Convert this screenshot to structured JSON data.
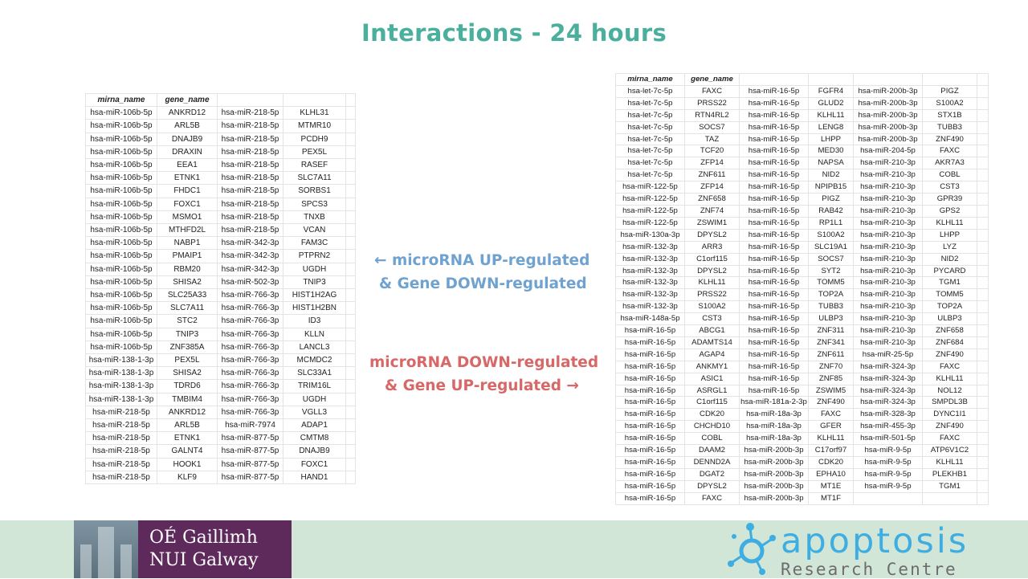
{
  "slide": {
    "title": "Interactions - 24 hours",
    "annotation_up": {
      "line1": "← microRNA UP-regulated",
      "line2": "& Gene DOWN-regulated"
    },
    "annotation_down": {
      "line1": "microRNA DOWN-regulated",
      "line2": "& Gene UP-regulated →"
    }
  },
  "colors": {
    "title": "#4aaf9c",
    "up_text": "#6fa2cf",
    "down_text": "#d86767",
    "footer_band": "#d2e6d8",
    "nui_purple": "#5d2a5b",
    "apoptosis_blue": "#3eaee2"
  },
  "table_up": {
    "headers": [
      "mirna_name",
      "gene_name",
      "",
      ""
    ],
    "rows": [
      [
        "hsa-miR-106b-5p",
        "ANKRD12",
        "hsa-miR-218-5p",
        "KLHL31"
      ],
      [
        "hsa-miR-106b-5p",
        "ARL5B",
        "hsa-miR-218-5p",
        "MTMR10"
      ],
      [
        "hsa-miR-106b-5p",
        "DNAJB9",
        "hsa-miR-218-5p",
        "PCDH9"
      ],
      [
        "hsa-miR-106b-5p",
        "DRAXIN",
        "hsa-miR-218-5p",
        "PEX5L"
      ],
      [
        "hsa-miR-106b-5p",
        "EEA1",
        "hsa-miR-218-5p",
        "RASEF"
      ],
      [
        "hsa-miR-106b-5p",
        "ETNK1",
        "hsa-miR-218-5p",
        "SLC7A11"
      ],
      [
        "hsa-miR-106b-5p",
        "FHDC1",
        "hsa-miR-218-5p",
        "SORBS1"
      ],
      [
        "hsa-miR-106b-5p",
        "FOXC1",
        "hsa-miR-218-5p",
        "SPCS3"
      ],
      [
        "hsa-miR-106b-5p",
        "MSMO1",
        "hsa-miR-218-5p",
        "TNXB"
      ],
      [
        "hsa-miR-106b-5p",
        "MTHFD2L",
        "hsa-miR-218-5p",
        "VCAN"
      ],
      [
        "hsa-miR-106b-5p",
        "NABP1",
        "hsa-miR-342-3p",
        "FAM3C"
      ],
      [
        "hsa-miR-106b-5p",
        "PMAIP1",
        "hsa-miR-342-3p",
        "PTPRN2"
      ],
      [
        "hsa-miR-106b-5p",
        "RBM20",
        "hsa-miR-342-3p",
        "UGDH"
      ],
      [
        "hsa-miR-106b-5p",
        "SHISA2",
        "hsa-miR-502-3p",
        "TNIP3"
      ],
      [
        "hsa-miR-106b-5p",
        "SLC25A33",
        "hsa-miR-766-3p",
        "HIST1H2AG"
      ],
      [
        "hsa-miR-106b-5p",
        "SLC7A11",
        "hsa-miR-766-3p",
        "HIST1H2BN"
      ],
      [
        "hsa-miR-106b-5p",
        "STC2",
        "hsa-miR-766-3p",
        "ID3"
      ],
      [
        "hsa-miR-106b-5p",
        "TNIP3",
        "hsa-miR-766-3p",
        "KLLN"
      ],
      [
        "hsa-miR-106b-5p",
        "ZNF385A",
        "hsa-miR-766-3p",
        "LANCL3"
      ],
      [
        "hsa-miR-138-1-3p",
        "PEX5L",
        "hsa-miR-766-3p",
        "MCMDC2"
      ],
      [
        "hsa-miR-138-1-3p",
        "SHISA2",
        "hsa-miR-766-3p",
        "SLC33A1"
      ],
      [
        "hsa-miR-138-1-3p",
        "TDRD6",
        "hsa-miR-766-3p",
        "TRIM16L"
      ],
      [
        "hsa-miR-138-1-3p",
        "TMBIM4",
        "hsa-miR-766-3p",
        "UGDH"
      ],
      [
        "hsa-miR-218-5p",
        "ANKRD12",
        "hsa-miR-766-3p",
        "VGLL3"
      ],
      [
        "hsa-miR-218-5p",
        "ARL5B",
        "hsa-miR-7974",
        "ADAP1"
      ],
      [
        "hsa-miR-218-5p",
        "ETNK1",
        "hsa-miR-877-5p",
        "CMTM8"
      ],
      [
        "hsa-miR-218-5p",
        "GALNT4",
        "hsa-miR-877-5p",
        "DNAJB9"
      ],
      [
        "hsa-miR-218-5p",
        "HOOK1",
        "hsa-miR-877-5p",
        "FOXC1"
      ],
      [
        "hsa-miR-218-5p",
        "KLF9",
        "hsa-miR-877-5p",
        "HAND1"
      ]
    ]
  },
  "table_down": {
    "headers": [
      "mirna_name",
      "gene_name",
      "",
      "",
      "",
      ""
    ],
    "rows": [
      [
        "hsa-let-7c-5p",
        "FAXC",
        "hsa-miR-16-5p",
        "FGFR4",
        "hsa-miR-200b-3p",
        "PIGZ"
      ],
      [
        "hsa-let-7c-5p",
        "PRSS22",
        "hsa-miR-16-5p",
        "GLUD2",
        "hsa-miR-200b-3p",
        "S100A2"
      ],
      [
        "hsa-let-7c-5p",
        "RTN4RL2",
        "hsa-miR-16-5p",
        "KLHL11",
        "hsa-miR-200b-3p",
        "STX1B"
      ],
      [
        "hsa-let-7c-5p",
        "SOCS7",
        "hsa-miR-16-5p",
        "LENG8",
        "hsa-miR-200b-3p",
        "TUBB3"
      ],
      [
        "hsa-let-7c-5p",
        "TAZ",
        "hsa-miR-16-5p",
        "LHPP",
        "hsa-miR-200b-3p",
        "ZNF490"
      ],
      [
        "hsa-let-7c-5p",
        "TCF20",
        "hsa-miR-16-5p",
        "MED30",
        "hsa-miR-204-5p",
        "FAXC"
      ],
      [
        "hsa-let-7c-5p",
        "ZFP14",
        "hsa-miR-16-5p",
        "NAPSA",
        "hsa-miR-210-3p",
        "AKR7A3"
      ],
      [
        "hsa-let-7c-5p",
        "ZNF611",
        "hsa-miR-16-5p",
        "NID2",
        "hsa-miR-210-3p",
        "COBL"
      ],
      [
        "hsa-miR-122-5p",
        "ZFP14",
        "hsa-miR-16-5p",
        "NPIPB15",
        "hsa-miR-210-3p",
        "CST3"
      ],
      [
        "hsa-miR-122-5p",
        "ZNF658",
        "hsa-miR-16-5p",
        "PIGZ",
        "hsa-miR-210-3p",
        "GPR39"
      ],
      [
        "hsa-miR-122-5p",
        "ZNF74",
        "hsa-miR-16-5p",
        "RAB42",
        "hsa-miR-210-3p",
        "GPS2"
      ],
      [
        "hsa-miR-122-5p",
        "ZSWIM1",
        "hsa-miR-16-5p",
        "RP1L1",
        "hsa-miR-210-3p",
        "KLHL11"
      ],
      [
        "hsa-miR-130a-3p",
        "DPYSL2",
        "hsa-miR-16-5p",
        "S100A2",
        "hsa-miR-210-3p",
        "LHPP"
      ],
      [
        "hsa-miR-132-3p",
        "ARR3",
        "hsa-miR-16-5p",
        "SLC19A1",
        "hsa-miR-210-3p",
        "LYZ"
      ],
      [
        "hsa-miR-132-3p",
        "C1orf115",
        "hsa-miR-16-5p",
        "SOCS7",
        "hsa-miR-210-3p",
        "NID2"
      ],
      [
        "hsa-miR-132-3p",
        "DPYSL2",
        "hsa-miR-16-5p",
        "SYT2",
        "hsa-miR-210-3p",
        "PYCARD"
      ],
      [
        "hsa-miR-132-3p",
        "KLHL11",
        "hsa-miR-16-5p",
        "TOMM5",
        "hsa-miR-210-3p",
        "TGM1"
      ],
      [
        "hsa-miR-132-3p",
        "PRSS22",
        "hsa-miR-16-5p",
        "TOP2A",
        "hsa-miR-210-3p",
        "TOMM5"
      ],
      [
        "hsa-miR-132-3p",
        "S100A2",
        "hsa-miR-16-5p",
        "TUBB3",
        "hsa-miR-210-3p",
        "TOP2A"
      ],
      [
        "hsa-miR-148a-5p",
        "CST3",
        "hsa-miR-16-5p",
        "ULBP3",
        "hsa-miR-210-3p",
        "ULBP3"
      ],
      [
        "hsa-miR-16-5p",
        "ABCG1",
        "hsa-miR-16-5p",
        "ZNF311",
        "hsa-miR-210-3p",
        "ZNF658"
      ],
      [
        "hsa-miR-16-5p",
        "ADAMTS14",
        "hsa-miR-16-5p",
        "ZNF341",
        "hsa-miR-210-3p",
        "ZNF684"
      ],
      [
        "hsa-miR-16-5p",
        "AGAP4",
        "hsa-miR-16-5p",
        "ZNF611",
        "hsa-miR-25-5p",
        "ZNF490"
      ],
      [
        "hsa-miR-16-5p",
        "ANKMY1",
        "hsa-miR-16-5p",
        "ZNF70",
        "hsa-miR-324-3p",
        "FAXC"
      ],
      [
        "hsa-miR-16-5p",
        "ASIC1",
        "hsa-miR-16-5p",
        "ZNF85",
        "hsa-miR-324-3p",
        "KLHL11"
      ],
      [
        "hsa-miR-16-5p",
        "ASRGL1",
        "hsa-miR-16-5p",
        "ZSWIM5",
        "hsa-miR-324-3p",
        "NOL12"
      ],
      [
        "hsa-miR-16-5p",
        "C1orf115",
        "hsa-miR-181a-2-3p",
        "ZNF490",
        "hsa-miR-324-3p",
        "SMPDL3B"
      ],
      [
        "hsa-miR-16-5p",
        "CDK20",
        "hsa-miR-18a-3p",
        "FAXC",
        "hsa-miR-328-3p",
        "DYNC1I1"
      ],
      [
        "hsa-miR-16-5p",
        "CHCHD10",
        "hsa-miR-18a-3p",
        "GFER",
        "hsa-miR-455-3p",
        "ZNF490"
      ],
      [
        "hsa-miR-16-5p",
        "COBL",
        "hsa-miR-18a-3p",
        "KLHL11",
        "hsa-miR-501-5p",
        "FAXC"
      ],
      [
        "hsa-miR-16-5p",
        "DAAM2",
        "hsa-miR-200b-3p",
        "C17orf97",
        "hsa-miR-9-5p",
        "ATP6V1C2"
      ],
      [
        "hsa-miR-16-5p",
        "DENND2A",
        "hsa-miR-200b-3p",
        "CDK20",
        "hsa-miR-9-5p",
        "KLHL11"
      ],
      [
        "hsa-miR-16-5p",
        "DGAT2",
        "hsa-miR-200b-3p",
        "EPHA10",
        "hsa-miR-9-5p",
        "PLEKHB1"
      ],
      [
        "hsa-miR-16-5p",
        "DPYSL2",
        "hsa-miR-200b-3p",
        "MT1E",
        "hsa-miR-9-5p",
        "TGM1"
      ],
      [
        "hsa-miR-16-5p",
        "FAXC",
        "hsa-miR-200b-3p",
        "MT1F",
        "",
        ""
      ]
    ]
  },
  "footer": {
    "nui_line1": "OÉ Gaillimh",
    "nui_line2": "NUI Galway",
    "arc_word": "apoptosis",
    "arc_sub": "Research Centre"
  }
}
